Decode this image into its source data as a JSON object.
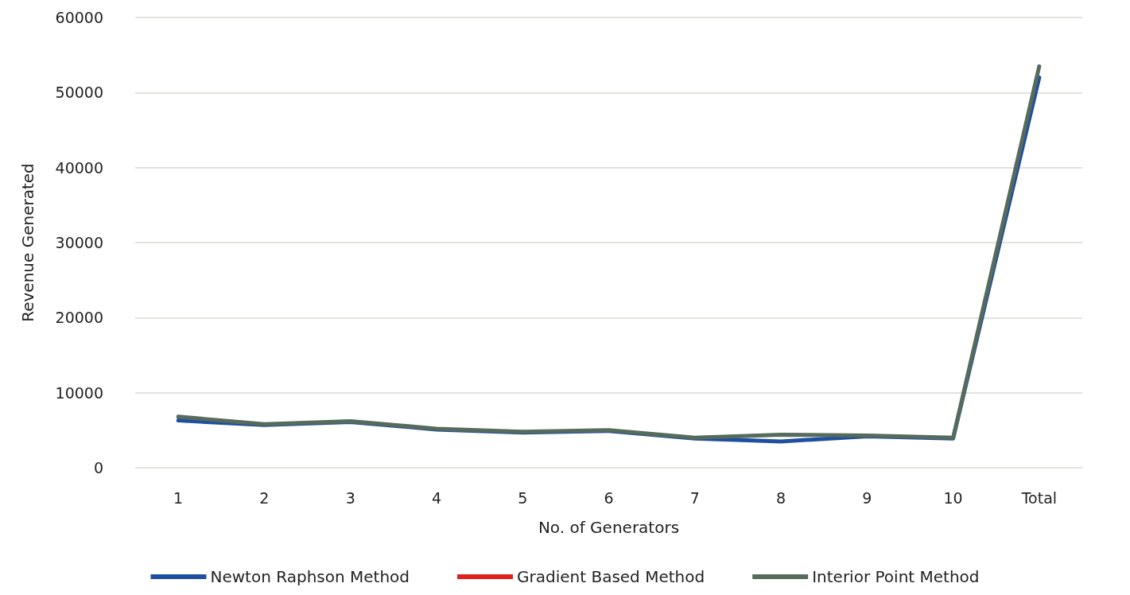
{
  "chart_data": {
    "type": "line",
    "xlabel": "No. of Generators",
    "ylabel": "Revenue Generated",
    "categories": [
      "1",
      "2",
      "3",
      "4",
      "5",
      "6",
      "7",
      "8",
      "9",
      "10",
      "Total"
    ],
    "series": [
      {
        "name": "Newton Raphson Method",
        "color": "#1f4fa0",
        "values": [
          6300,
          5700,
          6100,
          5100,
          4700,
          4900,
          3900,
          3500,
          4200,
          3900,
          52000
        ]
      },
      {
        "name": "Gradient Based Method",
        "color": "#e0201b",
        "values": [
          null,
          null,
          null,
          null,
          null,
          null,
          null,
          null,
          null,
          null,
          null
        ]
      },
      {
        "name": "Interior Point Method",
        "color": "#566b5c",
        "values": [
          6800,
          5800,
          6200,
          5200,
          4800,
          5000,
          4000,
          4400,
          4300,
          4000,
          53500
        ]
      }
    ],
    "ylim": [
      0,
      60000
    ],
    "yticks": [
      0,
      10000,
      20000,
      30000,
      40000,
      50000,
      60000
    ],
    "grid": "y",
    "legend": "bottom",
    "marker": "none",
    "line_style": "solid"
  }
}
